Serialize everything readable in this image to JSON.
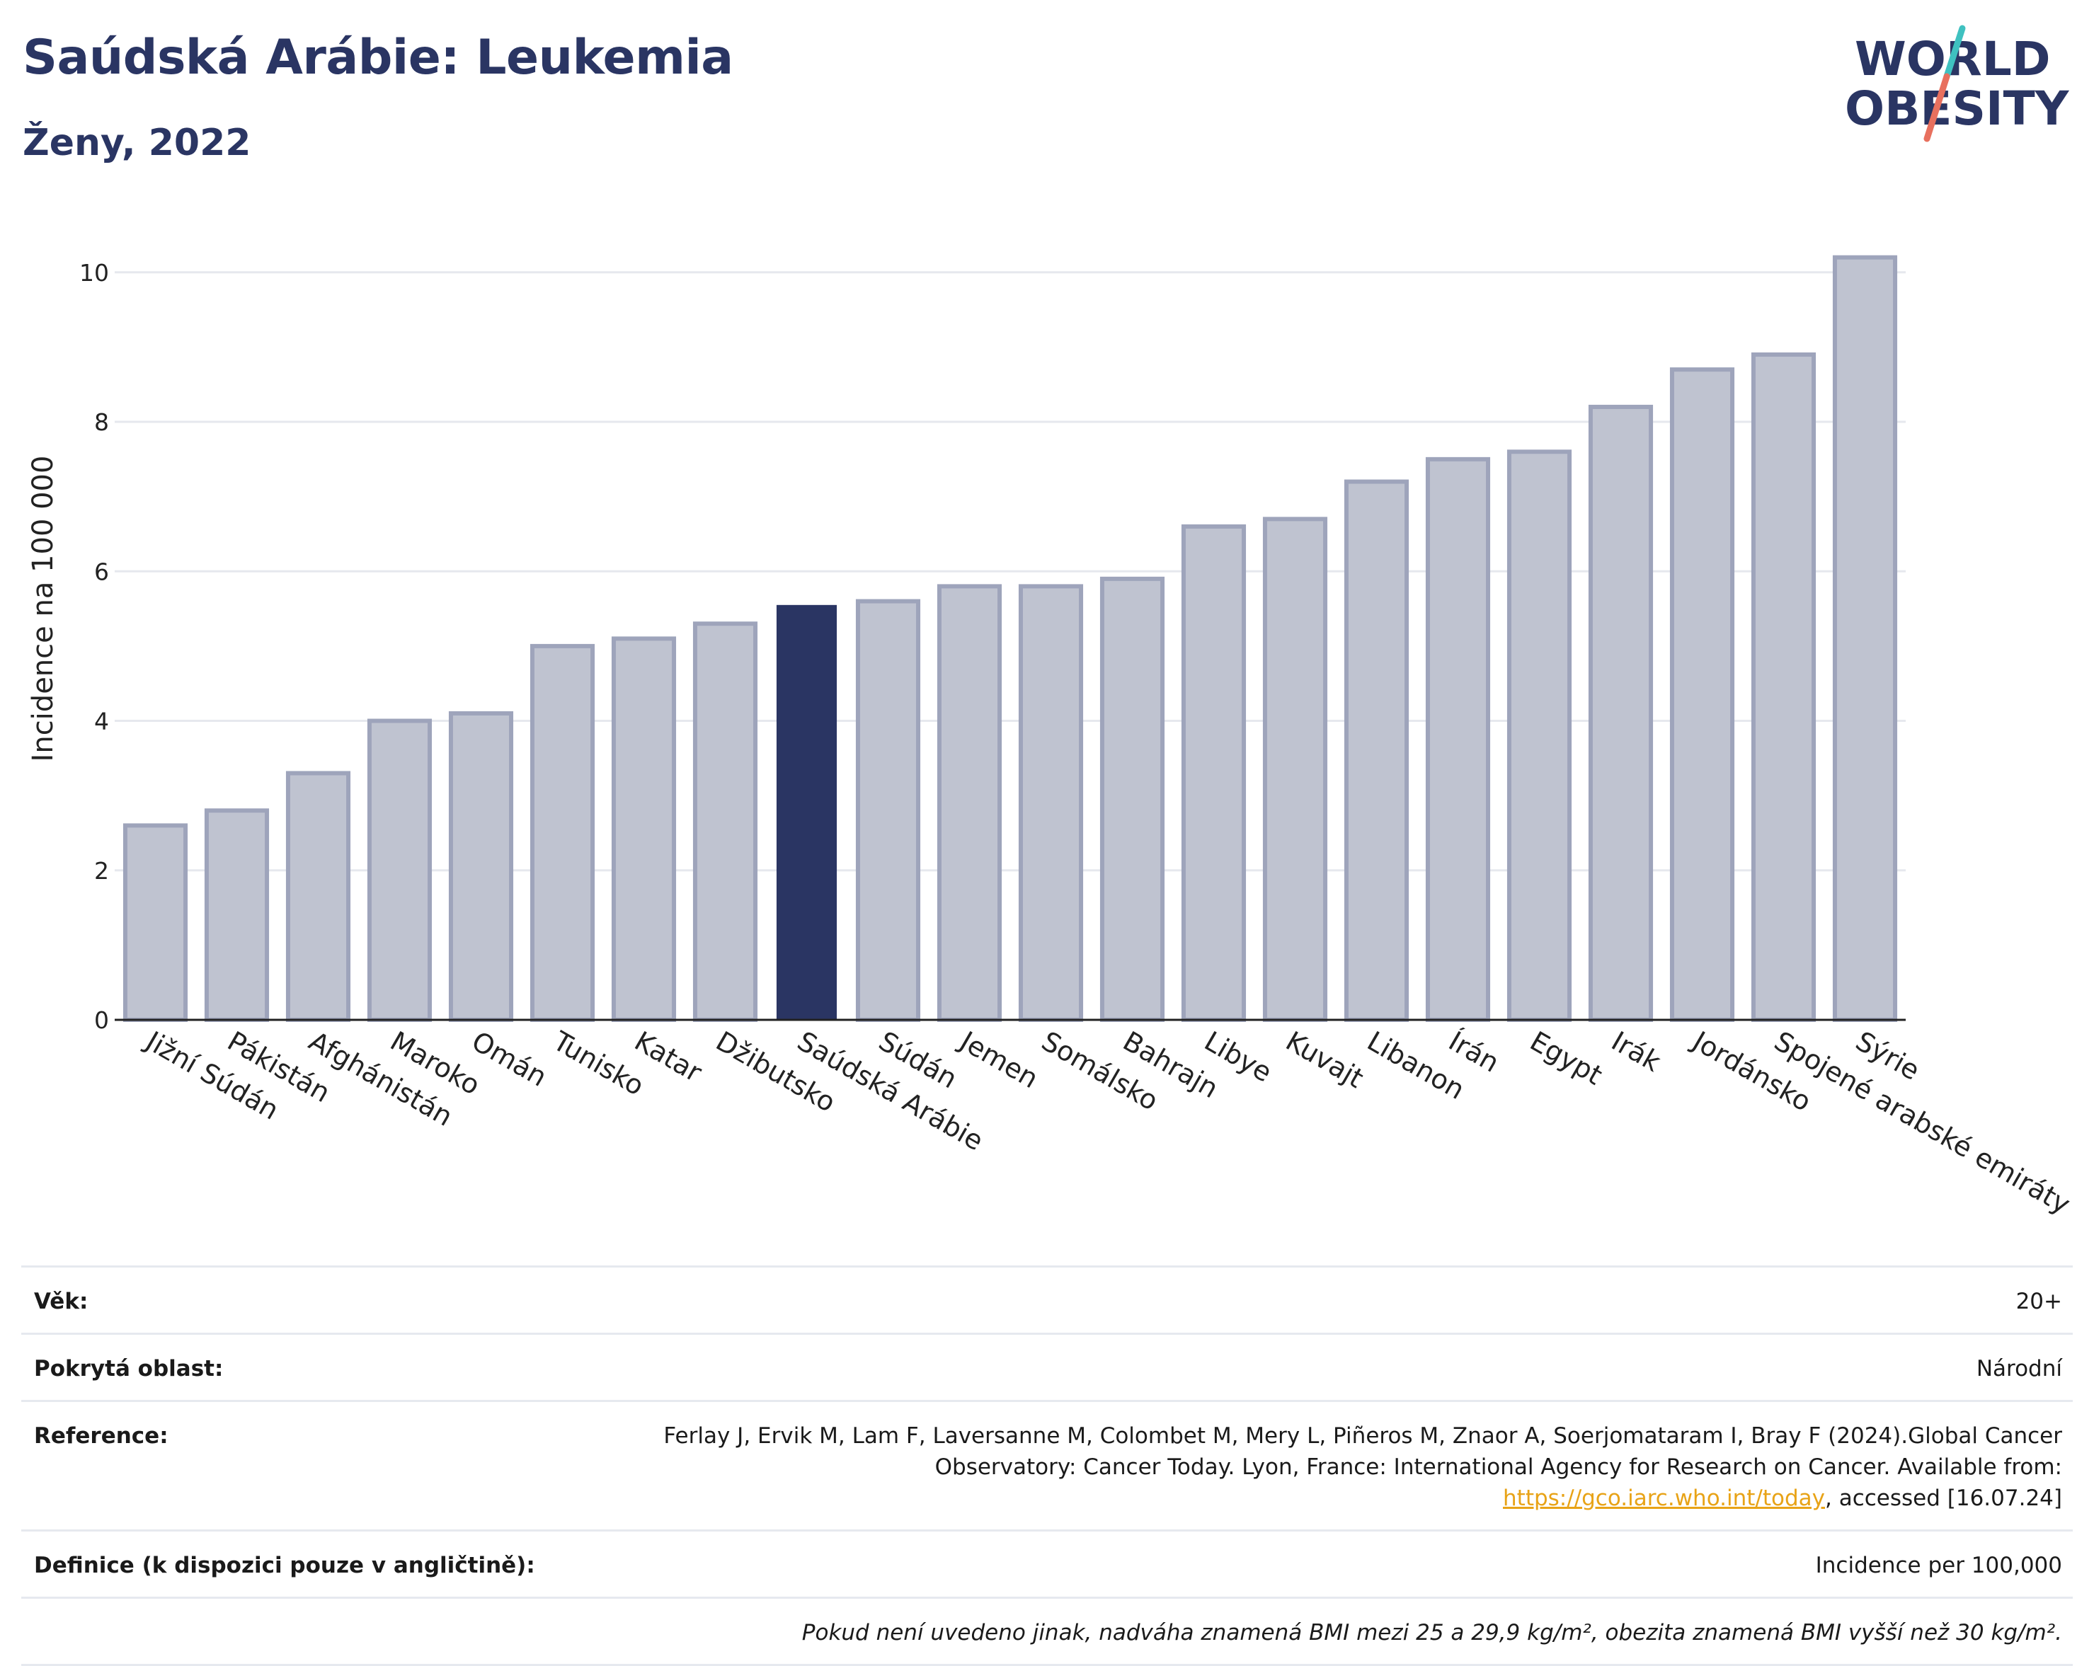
{
  "header": {
    "title": "Saúdská Arábie: Leukemia",
    "subtitle": "Ženy, 2022",
    "logo_line1": "WORLD",
    "logo_line2": "OBESITY"
  },
  "colors": {
    "title": "#2a3563",
    "bar_default": "#bfc3d0",
    "bar_default_stroke": "#9ea4bb",
    "bar_highlight": "#2a3563",
    "gridline": "#e6e8ee",
    "logo_teal": "#3fc1c0",
    "logo_coral": "#e8705e"
  },
  "chart_data": {
    "type": "bar",
    "title": "Saúdská Arábie: Leukemia",
    "subtitle": "Ženy, 2022",
    "xlabel": "",
    "ylabel": "Incidence na 100 000",
    "ylim": [
      0,
      10.5
    ],
    "yticks": [
      0,
      2,
      4,
      6,
      8,
      10
    ],
    "grid": true,
    "highlight": "Saúdská Arábie",
    "categories": [
      "Jižní Súdán",
      "Pákistán",
      "Afghánistán",
      "Maroko",
      "Omán",
      "Tunisko",
      "Katar",
      "Džibutsko",
      "Saúdská Arábie",
      "Súdán",
      "Jemen",
      "Somálsko",
      "Bahrajn",
      "Libye",
      "Kuvajt",
      "Libanon",
      "Írán",
      "Egypt",
      "Irák",
      "Jordánsko",
      "Spojené arabské emiráty",
      "Sýrie"
    ],
    "values": [
      2.6,
      2.8,
      3.3,
      4.0,
      4.1,
      5.0,
      5.1,
      5.3,
      5.55,
      5.6,
      5.8,
      5.8,
      5.9,
      6.6,
      6.7,
      7.2,
      7.5,
      7.6,
      8.2,
      8.7,
      8.9,
      10.2
    ]
  },
  "meta": {
    "age_label": "Věk:",
    "age_value": "20+",
    "coverage_label": "Pokrytá oblast:",
    "coverage_value": "Národní",
    "reference_label": "Reference:",
    "reference_text_before": "Ferlay J, Ervik M, Lam F, Laversanne M, Colombet M, Mery L, Piñeros M, Znaor A, Soerjomataram I, Bray F (2024).Global Cancer Observatory: Cancer Today. Lyon, France: International Agency for Research on Cancer. Available from: ",
    "reference_link": "https://gco.iarc.who.int/today",
    "reference_text_after": ", accessed [16.07.24]",
    "definition_label": "Definice (k dispozici pouze v angličtině):",
    "definition_value": "Incidence per 100,000",
    "note": "Pokud není uvedeno jinak, nadváha znamená BMI mezi 25 a 29,9 kg/m², obezita znamená BMI vyšší než 30 kg/m²."
  }
}
